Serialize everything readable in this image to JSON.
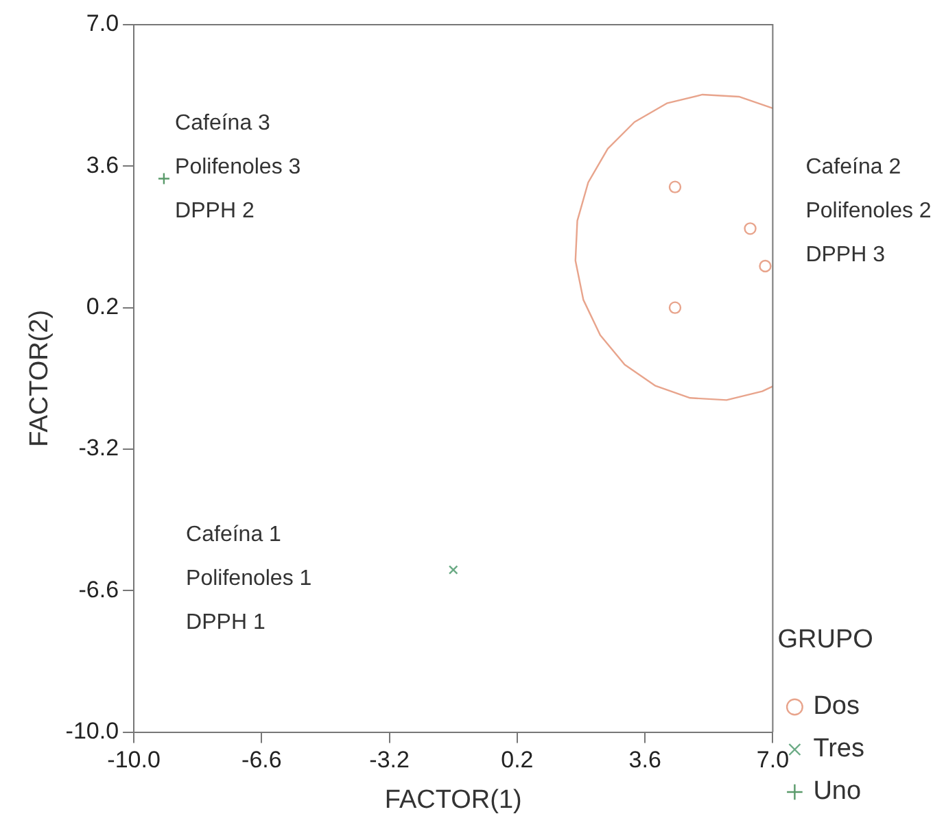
{
  "chart_data": {
    "type": "scatter",
    "xlabel": "FACTOR(1)",
    "ylabel": "FACTOR(2)",
    "legend_title": "GRUPO",
    "legend": "bottom right",
    "grid": false,
    "xlim": [
      -10,
      7
    ],
    "ylim": [
      -10,
      7
    ],
    "xticks": [
      {
        "value": -10,
        "label": "-10.0"
      },
      -6.6,
      -3.2,
      0.2,
      3.6,
      {
        "value": 7,
        "label": "7.0"
      }
    ],
    "yticks": [
      {
        "value": -10,
        "label": "-10.0"
      },
      -6.6,
      -3.2,
      0.2,
      3.6,
      {
        "value": 7,
        "label": "7.0"
      }
    ],
    "series": [
      {
        "name": "Dos",
        "color": "#e8a48c",
        "marker": "circle",
        "x": [
          4.4,
          6.4,
          6.8,
          4.4
        ],
        "values": [
          3.1,
          2.1,
          1.2,
          0.2
        ]
      },
      {
        "name": "Tres",
        "color": "#6aaa84",
        "marker": "cross",
        "x": [
          -1.5
        ],
        "values": [
          -6.1
        ]
      },
      {
        "name": "Uno",
        "color": "#5a9a6a",
        "marker": "plus",
        "x": [
          -9.2
        ],
        "values": [
          3.3
        ]
      },
      {
        "type": "line",
        "color": "#e8a48c",
        "marker": "none",
        "x": [
          7.0,
          6.1,
          5.13,
          4.18,
          3.32,
          2.61,
          2.09,
          1.8,
          1.75,
          1.96,
          2.41,
          3.06,
          3.88,
          4.8,
          5.77,
          6.72,
          7.0
        ],
        "values": [
          4.99,
          5.27,
          5.32,
          5.11,
          4.66,
          4.02,
          3.21,
          2.29,
          1.33,
          0.39,
          -0.46,
          -1.17,
          -1.68,
          -1.97,
          -2.02,
          -1.81,
          -1.69
        ]
      }
    ],
    "annotations": [
      "Cafeína 3\nPolifenoles 3\nDPPH 2",
      "Cafeína 1\nPolifenoles 1\nDPPH 1",
      "Cafeína 2\nPolifenoles 2\nDPPH 3"
    ]
  }
}
